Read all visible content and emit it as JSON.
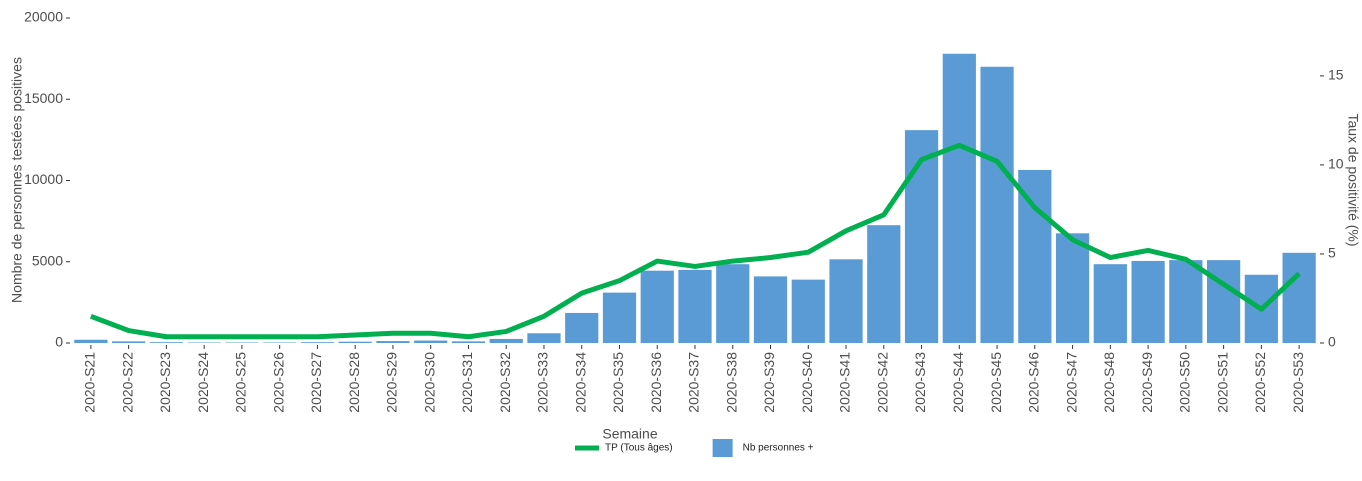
{
  "chart_data": {
    "type": "bar-line",
    "x_label": "Semaine",
    "y_label": "Nombre de personnes testées positives",
    "y2_label": "Taux de positivité (%)",
    "categories": [
      "2020-S21",
      "2020-S22",
      "2020-S23",
      "2020-S24",
      "2020-S25",
      "2020-S26",
      "2020-S27",
      "2020-S28",
      "2020-S29",
      "2020-S30",
      "2020-S31",
      "2020-S32",
      "2020-S33",
      "2020-S34",
      "2020-S35",
      "2020-S36",
      "2020-S37",
      "2020-S38",
      "2020-S39",
      "2020-S40",
      "2020-S41",
      "2020-S42",
      "2020-S43",
      "2020-S44",
      "2020-S45",
      "2020-S46",
      "2020-S47",
      "2020-S48",
      "2020-S49",
      "2020-S50",
      "2020-S51",
      "2020-S52",
      "2020-S53"
    ],
    "series": [
      {
        "name": "TP (Tous âges)",
        "type": "line",
        "axis": "y2",
        "color": "#00b050",
        "values": [
          1.5,
          0.7,
          0.35,
          0.35,
          0.35,
          0.35,
          0.35,
          0.45,
          0.55,
          0.55,
          0.35,
          0.65,
          1.5,
          2.8,
          3.5,
          4.6,
          4.3,
          4.6,
          4.8,
          5.1,
          6.3,
          7.2,
          10.3,
          11.1,
          10.2,
          7.6,
          5.8,
          4.8,
          5.2,
          4.7,
          3.3,
          1.9,
          3.9
        ]
      },
      {
        "name": "Nb personnes +",
        "type": "bar",
        "axis": "y",
        "color": "#5b9bd5",
        "values": [
          200,
          100,
          50,
          30,
          30,
          30,
          50,
          80,
          120,
          150,
          100,
          250,
          600,
          1850,
          3100,
          4450,
          4500,
          4850,
          4100,
          3900,
          5150,
          7250,
          13100,
          17800,
          17000,
          10650,
          6750,
          4850,
          5050,
          5100,
          5100,
          4200,
          5550
        ]
      }
    ],
    "ylim": [
      0,
      20000
    ],
    "yticks": [
      0,
      5000,
      10000,
      15000,
      20000
    ],
    "y2lim": [
      0,
      18.25
    ],
    "y2ticks": [
      0,
      5,
      10,
      15
    ],
    "legend": "bottom"
  }
}
